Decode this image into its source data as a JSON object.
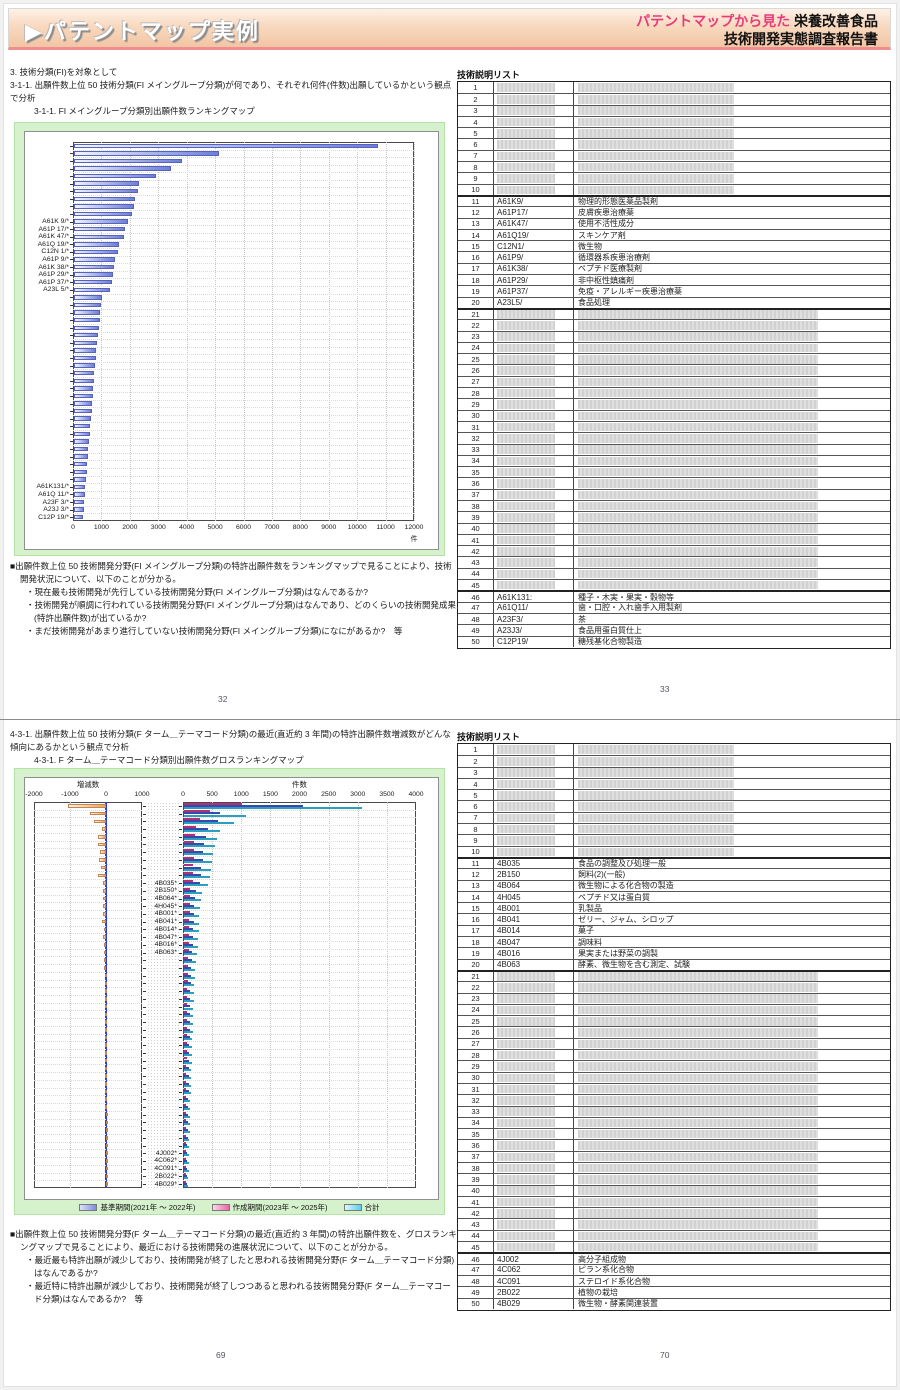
{
  "header": {
    "title_arrow": "▶",
    "title": "パテントマップ実例",
    "tagline_pink": "パテントマップから見た",
    "tagline_black": "栄養改善食品",
    "tagline_line2": "技術開発実態調査報告書"
  },
  "colors": {
    "accent_pink": "#e83a78",
    "panel_green": "#d6f2cd",
    "bar_blue": "#6e7ed9",
    "bar_orange": "#efa261",
    "series_base_blue": "#5e68cf",
    "series_recent_pink": "#e8509b",
    "series_total_cyan": "#4dcbe8",
    "header_underline": "#f08e8e"
  },
  "section1": {
    "heading0": "3. 技術分類(FI)を対象として",
    "heading1": "3-1-1. 出願件数上位 50 技術分類(FI メイングループ分類)が何であり、それぞれ何件(件数)出願しているかという観点で分析",
    "chart_caption": "3-1-1. FI メイングループ分類別出願件数ランキングマップ",
    "bullets": [
      "■出願件数上位 50 技術開発分野(FI メイングループ分類)の特許出願件数をランキングマップで見ることにより、技術開発状況について、以下のことが分かる。",
      "・現在最も技術開発が先行している技術開発分野(FI メイングループ分類)はなんであるか?",
      "・技術開発が順調に行われている技術開発分野(FI メイングループ分類)はなんであり、どのくらいの技術開発成果(特許出願件数)が出ているか?",
      "・まだ技術開発があまり進行していない技術開発分野(FI メイングループ分類)になにがあるか?　等"
    ],
    "page_left": "32",
    "page_right": "33",
    "table_title": "技術説明リスト",
    "table_rows": [
      [
        1,
        "",
        ""
      ],
      [
        2,
        "",
        ""
      ],
      [
        3,
        "",
        ""
      ],
      [
        4,
        "",
        ""
      ],
      [
        5,
        "",
        ""
      ],
      [
        6,
        "",
        ""
      ],
      [
        7,
        "",
        ""
      ],
      [
        8,
        "",
        ""
      ],
      [
        9,
        "",
        ""
      ],
      [
        10,
        "",
        ""
      ],
      [
        11,
        "A61K9/",
        "物理的形態医薬品製剤"
      ],
      [
        12,
        "A61P17/",
        "皮膚疾患治療薬"
      ],
      [
        13,
        "A61K47/",
        "使用不活性成分"
      ],
      [
        14,
        "A61Q19/",
        "スキンケア剤"
      ],
      [
        15,
        "C12N1/",
        "微生物"
      ],
      [
        16,
        "A61P9/",
        "循環器系疾患治療剤"
      ],
      [
        17,
        "A61K38/",
        "ペプチド医療製剤"
      ],
      [
        18,
        "A61P29/",
        "非中枢性鎮痛剤"
      ],
      [
        19,
        "A61P37/",
        "免疫・アレルギー疾患治療薬"
      ],
      [
        20,
        "A23L5/",
        "食品処理"
      ],
      [
        21,
        "",
        ""
      ],
      [
        22,
        "",
        ""
      ],
      [
        23,
        "",
        ""
      ],
      [
        24,
        "",
        ""
      ],
      [
        25,
        "",
        ""
      ],
      [
        26,
        "",
        ""
      ],
      [
        27,
        "",
        ""
      ],
      [
        28,
        "",
        ""
      ],
      [
        29,
        "",
        ""
      ],
      [
        30,
        "",
        ""
      ],
      [
        31,
        "",
        ""
      ],
      [
        32,
        "",
        ""
      ],
      [
        33,
        "",
        ""
      ],
      [
        34,
        "",
        ""
      ],
      [
        35,
        "",
        ""
      ],
      [
        36,
        "",
        ""
      ],
      [
        37,
        "",
        ""
      ],
      [
        38,
        "",
        ""
      ],
      [
        39,
        "",
        ""
      ],
      [
        40,
        "",
        ""
      ],
      [
        41,
        "",
        ""
      ],
      [
        42,
        "",
        ""
      ],
      [
        43,
        "",
        ""
      ],
      [
        44,
        "",
        ""
      ],
      [
        45,
        "",
        ""
      ],
      [
        46,
        "A61K131:",
        "種子・木実・果実・穀物等"
      ],
      [
        47,
        "A61Q11/",
        "歯・口腔・入れ歯手入用製剤"
      ],
      [
        48,
        "A23F3/",
        "茶"
      ],
      [
        49,
        "A23J3/",
        "食品用蛋白質仕上"
      ],
      [
        50,
        "C12P19/",
        "糖残基化合物製造"
      ]
    ]
  },
  "section2": {
    "heading1": "4-3-1. 出願件数上位 50 技術分類(F ターム＿テーマコード分類)の最近(直近約 3 年間)の特許出願件数増減数がどんな傾向にあるかという観点で分析",
    "chart_caption": "4-3-1. F ターム＿テーマコード分類別出願件数グロスランキングマップ",
    "bullets": [
      "■出願件数上位 50 技術開発分野(F ターム＿テーマコード分類)の最近(直近約 3 年間)の特許出願件数を、グロスランキングマップで見ることにより、最近における技術開発の進展状況について、以下のことが分かる。",
      "・最近最も特許出願が減少しており、技術開発が終了したと思われる技術開発分野(F ターム＿テーマコード分類)はなんであるか?",
      "・最近特に特許出願が減少しており、技術開発が終了しつつあると思われる技術開発分野(F ターム＿テーマコード分類)はなんであるか?　等"
    ],
    "page_left": "69",
    "page_right": "70",
    "table_title": "技術説明リスト",
    "table_rows": [
      [
        1,
        "",
        ""
      ],
      [
        2,
        "",
        ""
      ],
      [
        3,
        "",
        ""
      ],
      [
        4,
        "",
        ""
      ],
      [
        5,
        "",
        ""
      ],
      [
        6,
        "",
        ""
      ],
      [
        7,
        "",
        ""
      ],
      [
        8,
        "",
        ""
      ],
      [
        9,
        "",
        ""
      ],
      [
        10,
        "",
        ""
      ],
      [
        11,
        "4B035",
        "食品の調整及び処理一般"
      ],
      [
        12,
        "2B150",
        "飼料(2)(一般)"
      ],
      [
        13,
        "4B064",
        "微生物による化合物の製造"
      ],
      [
        14,
        "4H045",
        "ペプチド又は蛋白質"
      ],
      [
        15,
        "4B001",
        "乳製品"
      ],
      [
        16,
        "4B041",
        "ゼリー、ジャム、シロップ"
      ],
      [
        17,
        "4B014",
        "菓子"
      ],
      [
        18,
        "4B047",
        "調味料"
      ],
      [
        19,
        "4B016",
        "果実または野菜の調製"
      ],
      [
        20,
        "4B063",
        "酵素、微生物を含む測定、試験"
      ],
      [
        21,
        "",
        ""
      ],
      [
        22,
        "",
        ""
      ],
      [
        23,
        "",
        ""
      ],
      [
        24,
        "",
        ""
      ],
      [
        25,
        "",
        ""
      ],
      [
        26,
        "",
        ""
      ],
      [
        27,
        "",
        ""
      ],
      [
        28,
        "",
        ""
      ],
      [
        29,
        "",
        ""
      ],
      [
        30,
        "",
        ""
      ],
      [
        31,
        "",
        ""
      ],
      [
        32,
        "",
        ""
      ],
      [
        33,
        "",
        ""
      ],
      [
        34,
        "",
        ""
      ],
      [
        35,
        "",
        ""
      ],
      [
        36,
        "",
        ""
      ],
      [
        37,
        "",
        ""
      ],
      [
        38,
        "",
        ""
      ],
      [
        39,
        "",
        ""
      ],
      [
        40,
        "",
        ""
      ],
      [
        41,
        "",
        ""
      ],
      [
        42,
        "",
        ""
      ],
      [
        43,
        "",
        ""
      ],
      [
        44,
        "",
        ""
      ],
      [
        45,
        "",
        ""
      ],
      [
        46,
        "4J002",
        "高分子組成物"
      ],
      [
        47,
        "4C062",
        "ピラン系化合物"
      ],
      [
        48,
        "4C091",
        "ステロイド系化合物"
      ],
      [
        49,
        "2B022",
        "植物の栽培"
      ],
      [
        50,
        "4B029",
        "微生物・酵素関連装置"
      ]
    ]
  },
  "chart_data": [
    {
      "type": "bar",
      "orientation": "horizontal",
      "title": "3-1-1. FI メイングループ分類別出願件数ランキングマップ",
      "xlabel": "件",
      "xlim": [
        0,
        12000
      ],
      "xtick_step": 1000,
      "grid": true,
      "categories": [
        "",
        "",
        "",
        "",
        "",
        "",
        "",
        "",
        "",
        "",
        "A61K 9/*",
        "A61P 17/*",
        "A61K 47/*",
        "A61Q 19/*",
        "C12N 1/*",
        "A61P 9/*",
        "A61K 38/*",
        "A61P 29/*",
        "A61P 37/*",
        "A23L 5/*",
        "",
        "",
        "",
        "",
        "",
        "",
        "",
        "",
        "",
        "",
        "",
        "",
        "",
        "",
        "",
        "",
        "",
        "",
        "",
        "",
        "",
        "",
        "",
        "",
        "",
        "A61K131/*",
        "A61Q 11/*",
        "A23F 3/*",
        "A23J 3/*",
        "C12P 19/*"
      ],
      "values": [
        10700,
        5100,
        3800,
        3400,
        2900,
        2300,
        2250,
        2150,
        2100,
        2050,
        1900,
        1800,
        1750,
        1600,
        1550,
        1450,
        1400,
        1380,
        1350,
        1270,
        1000,
        960,
        930,
        900,
        870,
        840,
        810,
        790,
        770,
        750,
        720,
        700,
        680,
        660,
        640,
        620,
        600,
        580,
        560,
        540,
        500,
        480,
        460,
        440,
        420,
        400,
        380,
        360,
        340,
        320
      ]
    },
    {
      "type": "bar",
      "orientation": "horizontal",
      "title": "4-3-1. F ターム＿テーマコード分類別出願件数グロスランキングマップ",
      "legend": [
        "基準期間(2021年 ～ 2022年)",
        "作成期間(2023年 ～ 2025年)",
        "合計"
      ],
      "legend_position": "bottom",
      "categories": [
        "",
        "",
        "",
        "",
        "",
        "",
        "",
        "",
        "",
        "",
        "4B035*",
        "2B150*",
        "4B064*",
        "4H045*",
        "4B001*",
        "4B041*",
        "4B014*",
        "4B047*",
        "4B016*",
        "4B063*",
        "",
        "",
        "",
        "",
        "",
        "",
        "",
        "",
        "",
        "",
        "",
        "",
        "",
        "",
        "",
        "",
        "",
        "",
        "",
        "",
        "",
        "",
        "",
        "",
        "",
        "4J002*",
        "4C062*",
        "4C091*",
        "2B022*",
        "4B029*"
      ],
      "panels": [
        {
          "title": "増減数",
          "xlim": [
            -2000,
            1000
          ],
          "ticks": [
            -2000,
            -1000,
            0,
            1000
          ],
          "series": [
            {
              "name": "増減数",
              "values": [
                -1060,
                -440,
                -330,
                -120,
                -210,
                -230,
                -160,
                -200,
                -150,
                -230,
                -95,
                -85,
                -80,
                -75,
                -70,
                -100,
                -60,
                -80,
                -55,
                -50,
                -45,
                -42,
                -40,
                -38,
                -36,
                -34,
                -32,
                -30,
                -28,
                -26,
                -24,
                -22,
                -21,
                -20,
                -19,
                -18,
                -17,
                -16,
                -15,
                -14,
                -13,
                -12,
                -11,
                -10,
                -9,
                -8,
                -7,
                -6,
                -5,
                -4
              ]
            }
          ]
        },
        {
          "title": "件数",
          "xlim": [
            0,
            4000
          ],
          "xtick_step": 500,
          "series": [
            {
              "name": "基準期間(2021年 ～ 2022年)",
              "values": [
                2050,
                620,
                580,
                420,
                380,
                350,
                330,
                320,
                300,
                290,
                270,
                200,
                190,
                180,
                170,
                165,
                160,
                155,
                150,
                145,
                130,
                125,
                120,
                115,
                110,
                108,
                105,
                102,
                100,
                98,
                95,
                92,
                90,
                88,
                85,
                82,
                80,
                78,
                75,
                72,
                70,
                68,
                65,
                62,
                60,
                58,
                55,
                52,
                50,
                48
              ]
            },
            {
              "name": "作成期間(2023年 ～ 2025年)",
              "values": [
                1000,
                450,
                280,
                200,
                190,
                180,
                170,
                165,
                160,
                155,
                150,
                110,
                105,
                100,
                95,
                92,
                90,
                88,
                85,
                82,
                70,
                68,
                65,
                62,
                60,
                58,
                56,
                54,
                52,
                50,
                48,
                46,
                45,
                44,
                42,
                40,
                39,
                38,
                36,
                35,
                34,
                33,
                32,
                31,
                30,
                29,
                28,
                27,
                26,
                25
              ]
            },
            {
              "name": "合計",
              "values": [
                3050,
                1070,
                860,
                620,
                570,
                530,
                500,
                485,
                460,
                445,
                420,
                310,
                295,
                280,
                265,
                257,
                250,
                243,
                235,
                227,
                200,
                193,
                185,
                177,
                170,
                166,
                161,
                156,
                152,
                148,
                143,
                138,
                135,
                132,
                127,
                122,
                119,
                116,
                111,
                107,
                104,
                101,
                97,
                93,
                90,
                87,
                83,
                79,
                76,
                73
              ]
            }
          ]
        }
      ]
    }
  ]
}
